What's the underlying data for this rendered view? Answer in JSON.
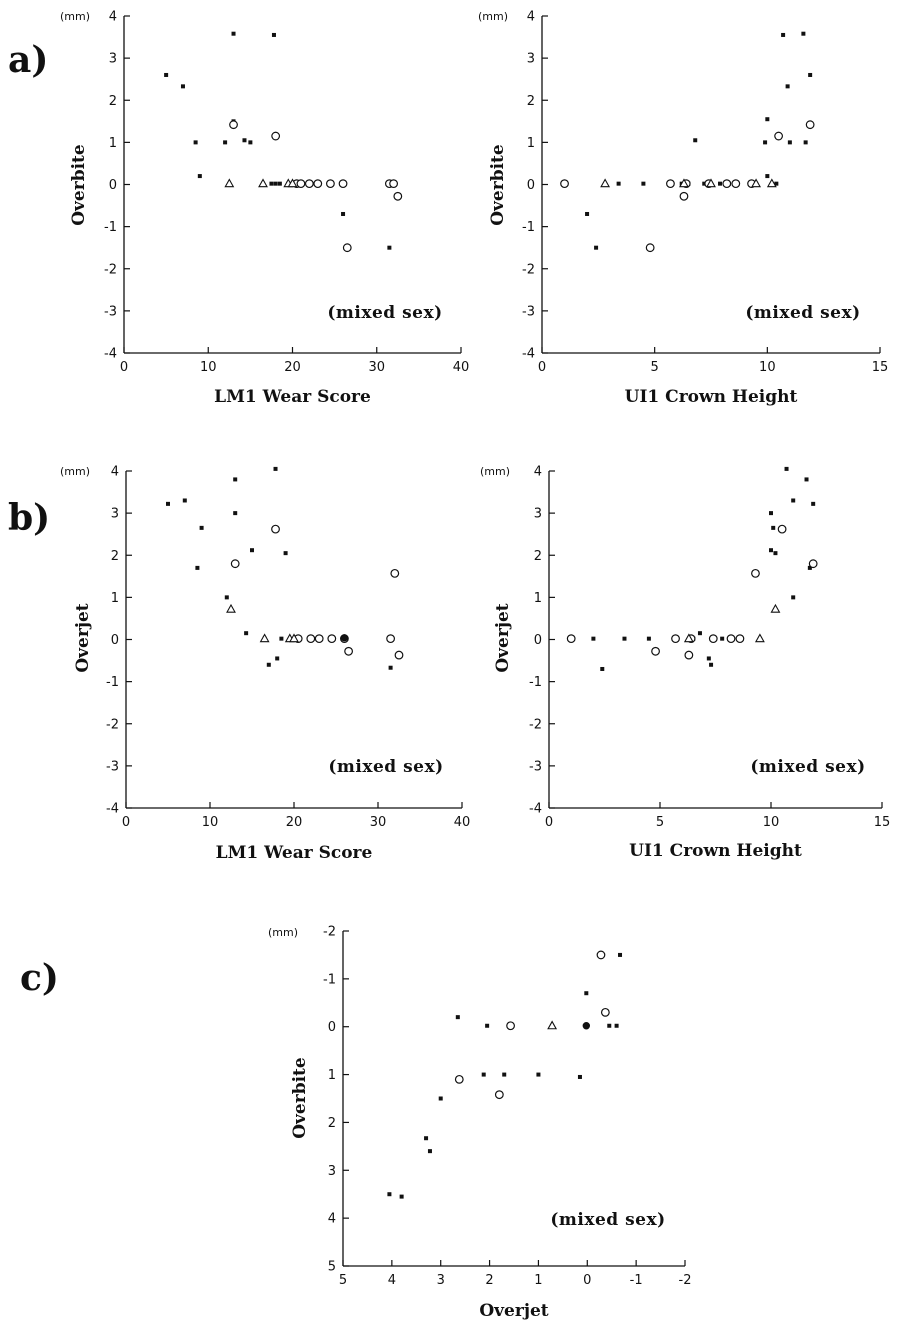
{
  "panel_labels": [
    "a)",
    "b)",
    "c)"
  ],
  "chart_data": [
    {
      "panel": "a)",
      "type": "scatter",
      "xlabel": "LM1 Wear Score",
      "ylabel": "Overbite",
      "unit": "(mm)",
      "annotation": "(mixed sex)",
      "xlim": [
        0,
        40
      ],
      "ylim": [
        -4,
        4
      ],
      "xticks": [
        0,
        10,
        20,
        30,
        40
      ],
      "yticks": [
        -4,
        -3,
        -2,
        -1,
        0,
        1,
        2,
        3,
        4
      ],
      "series": [
        {
          "marker": "square",
          "points": [
            [
              5,
              2.6
            ],
            [
              7,
              2.33
            ],
            [
              8.5,
              1.0
            ],
            [
              9,
              0.2
            ],
            [
              12,
              1.0
            ],
            [
              13,
              3.58
            ],
            [
              13,
              1.5
            ],
            [
              14.3,
              1.05
            ],
            [
              15,
              1.0
            ],
            [
              17.8,
              3.55
            ],
            [
              16.5,
              0.02
            ],
            [
              17.5,
              0.02
            ],
            [
              18,
              0.02
            ],
            [
              18.5,
              0.02
            ],
            [
              19.5,
              0.02
            ],
            [
              26,
              -0.7
            ],
            [
              31.5,
              -1.5
            ]
          ]
        },
        {
          "marker": "circle",
          "points": [
            [
              13,
              1.42
            ],
            [
              18,
              1.15
            ],
            [
              20.5,
              0.02
            ],
            [
              21,
              0.02
            ],
            [
              22,
              0.02
            ],
            [
              23,
              0.02
            ],
            [
              24.5,
              0.02
            ],
            [
              26,
              0.02
            ],
            [
              26.5,
              -1.5
            ],
            [
              31.5,
              0.02
            ],
            [
              32,
              0.02
            ],
            [
              32.5,
              -0.28
            ]
          ]
        },
        {
          "marker": "triangle",
          "points": [
            [
              12.5,
              0.02
            ],
            [
              16.5,
              0.02
            ],
            [
              19.5,
              0.02
            ],
            [
              20,
              0.02
            ]
          ]
        }
      ]
    },
    {
      "panel": "a)",
      "type": "scatter",
      "xlabel": "UI1 Crown Height",
      "ylabel": "Overbite",
      "unit": "(mm)",
      "annotation": "(mixed sex)",
      "xlim": [
        0,
        15
      ],
      "ylim": [
        -4,
        4
      ],
      "xticks": [
        0,
        5,
        10,
        15
      ],
      "yticks": [
        -4,
        -3,
        -2,
        -1,
        0,
        1,
        2,
        3,
        4
      ],
      "series": [
        {
          "marker": "square",
          "points": [
            [
              2,
              -0.7
            ],
            [
              2.4,
              -1.5
            ],
            [
              3.4,
              0.02
            ],
            [
              4.5,
              0.02
            ],
            [
              6.2,
              0.02
            ],
            [
              6.5,
              0.02
            ],
            [
              6.8,
              1.05
            ],
            [
              7.2,
              0.02
            ],
            [
              7.9,
              0.02
            ],
            [
              8.3,
              0.02
            ],
            [
              9.5,
              0.02
            ],
            [
              9.9,
              1.0
            ],
            [
              10.0,
              1.55
            ],
            [
              10.0,
              0.2
            ],
            [
              10.4,
              0.02
            ],
            [
              10.7,
              3.55
            ],
            [
              10.9,
              2.33
            ],
            [
              11,
              1.0
            ],
            [
              11.6,
              3.58
            ],
            [
              11.7,
              1.0
            ],
            [
              11.9,
              2.6
            ]
          ]
        },
        {
          "marker": "circle",
          "points": [
            [
              1,
              0.02
            ],
            [
              4.8,
              -1.5
            ],
            [
              5.7,
              0.02
            ],
            [
              6.3,
              -0.28
            ],
            [
              6.4,
              0.02
            ],
            [
              7.4,
              0.02
            ],
            [
              8.2,
              0.02
            ],
            [
              8.6,
              0.02
            ],
            [
              9.3,
              0.02
            ],
            [
              10.5,
              1.15
            ],
            [
              11.9,
              1.42
            ]
          ]
        },
        {
          "marker": "triangle",
          "points": [
            [
              2.8,
              0.02
            ],
            [
              6.3,
              0.02
            ],
            [
              7.5,
              0.02
            ],
            [
              9.5,
              0.02
            ],
            [
              10.2,
              0.02
            ]
          ]
        }
      ]
    },
    {
      "panel": "b)",
      "type": "scatter",
      "xlabel": "LM1 Wear Score",
      "ylabel": "Overjet",
      "unit": "(mm)",
      "annotation": "(mixed sex)",
      "xlim": [
        0,
        40
      ],
      "ylim": [
        -4,
        4
      ],
      "xticks": [
        0,
        10,
        20,
        30,
        40
      ],
      "yticks": [
        -4,
        -3,
        -2,
        -1,
        0,
        1,
        2,
        3,
        4
      ],
      "series": [
        {
          "marker": "square",
          "points": [
            [
              5,
              3.22
            ],
            [
              7,
              3.3
            ],
            [
              8.5,
              1.7
            ],
            [
              9,
              2.65
            ],
            [
              12,
              1.0
            ],
            [
              13,
              3.8
            ],
            [
              13,
              3.0
            ],
            [
              14.3,
              0.15
            ],
            [
              15,
              2.12
            ],
            [
              16.5,
              0.02
            ],
            [
              17,
              -0.6
            ],
            [
              17.8,
              4.05
            ],
            [
              18,
              -0.45
            ],
            [
              18.5,
              0.02
            ],
            [
              19,
              2.05
            ],
            [
              31.5,
              -0.67
            ]
          ]
        },
        {
          "marker": "circle",
          "points": [
            [
              13,
              1.8
            ],
            [
              17.8,
              2.62
            ],
            [
              20.5,
              0.02
            ],
            [
              22,
              0.02
            ],
            [
              23,
              0.02
            ],
            [
              24.5,
              0.02
            ],
            [
              26,
              0.02
            ],
            [
              26.5,
              -0.28
            ],
            [
              31.5,
              0.02
            ],
            [
              32,
              1.57
            ],
            [
              32.5,
              -0.37
            ]
          ]
        },
        {
          "marker": "triangle",
          "points": [
            [
              12.5,
              0.72
            ],
            [
              16.5,
              0.02
            ],
            [
              19.5,
              0.02
            ],
            [
              20,
              0.02
            ]
          ]
        },
        {
          "marker": "filled-circle",
          "points": [
            [
              26,
              0.04
            ]
          ]
        }
      ]
    },
    {
      "panel": "b)",
      "type": "scatter",
      "xlabel": "UI1 Crown Height",
      "ylabel": "Overjet",
      "unit": "(mm)",
      "annotation": "(mixed sex)",
      "xlim": [
        0,
        15
      ],
      "ylim": [
        -4,
        4
      ],
      "xticks": [
        0,
        5,
        10,
        15
      ],
      "yticks": [
        -4,
        -3,
        -2,
        -1,
        0,
        1,
        2,
        3,
        4
      ],
      "series": [
        {
          "marker": "square",
          "points": [
            [
              2,
              0.02
            ],
            [
              2.4,
              -0.7
            ],
            [
              3.4,
              0.02
            ],
            [
              4.5,
              0.02
            ],
            [
              6.5,
              0.02
            ],
            [
              6.8,
              0.15
            ],
            [
              7.2,
              -0.45
            ],
            [
              7.3,
              -0.6
            ],
            [
              7.8,
              0.02
            ],
            [
              10,
              3.0
            ],
            [
              10,
              2.12
            ],
            [
              10.1,
              2.65
            ],
            [
              10.2,
              2.05
            ],
            [
              10.7,
              4.05
            ],
            [
              11,
              3.3
            ],
            [
              11,
              1.0
            ],
            [
              11.6,
              3.8
            ],
            [
              11.75,
              1.7
            ],
            [
              11.9,
              3.22
            ]
          ]
        },
        {
          "marker": "circle",
          "points": [
            [
              1,
              0.02
            ],
            [
              4.8,
              -0.28
            ],
            [
              5.7,
              0.02
            ],
            [
              6.3,
              -0.37
            ],
            [
              6.4,
              0.02
            ],
            [
              7.4,
              0.02
            ],
            [
              8.2,
              0.02
            ],
            [
              8.6,
              0.02
            ],
            [
              9.3,
              1.57
            ],
            [
              10.5,
              2.62
            ],
            [
              11.9,
              1.8
            ]
          ]
        },
        {
          "marker": "triangle",
          "points": [
            [
              6.3,
              0.02
            ],
            [
              9.5,
              0.02
            ],
            [
              10.2,
              0.72
            ]
          ]
        }
      ]
    },
    {
      "panel": "c)",
      "type": "scatter",
      "xlabel": "Overjet",
      "ylabel": "Overbite",
      "unit": "(mm)",
      "annotation": "(mixed sex)",
      "xlim": [
        5,
        -2
      ],
      "ylim": [
        5,
        -2
      ],
      "xticks": [
        5,
        4,
        3,
        2,
        1,
        0,
        -1,
        -2
      ],
      "yticks": [
        5,
        4,
        3,
        2,
        1,
        0,
        -1,
        -2
      ],
      "series": [
        {
          "marker": "square",
          "points": [
            [
              4.05,
              3.5
            ],
            [
              3.8,
              3.55
            ],
            [
              3.3,
              2.33
            ],
            [
              3.22,
              2.6
            ],
            [
              3.0,
              1.5
            ],
            [
              2.65,
              -0.2
            ],
            [
              2.12,
              1.0
            ],
            [
              2.05,
              -0.02
            ],
            [
              1.7,
              1.0
            ],
            [
              1.0,
              1.0
            ],
            [
              0.15,
              1.05
            ],
            [
              0.02,
              -0.7
            ],
            [
              -0.45,
              -0.02
            ],
            [
              -0.6,
              -0.02
            ],
            [
              -0.67,
              -1.5
            ]
          ]
        },
        {
          "marker": "circle",
          "points": [
            [
              2.62,
              1.1
            ],
            [
              1.8,
              1.42
            ],
            [
              1.57,
              -0.02
            ],
            [
              -0.28,
              -1.5
            ],
            [
              -0.37,
              -0.3
            ]
          ]
        },
        {
          "marker": "triangle",
          "points": [
            [
              0.72,
              -0.02
            ]
          ]
        },
        {
          "marker": "filled-circle",
          "points": [
            [
              0.02,
              -0.02
            ]
          ]
        }
      ]
    }
  ]
}
